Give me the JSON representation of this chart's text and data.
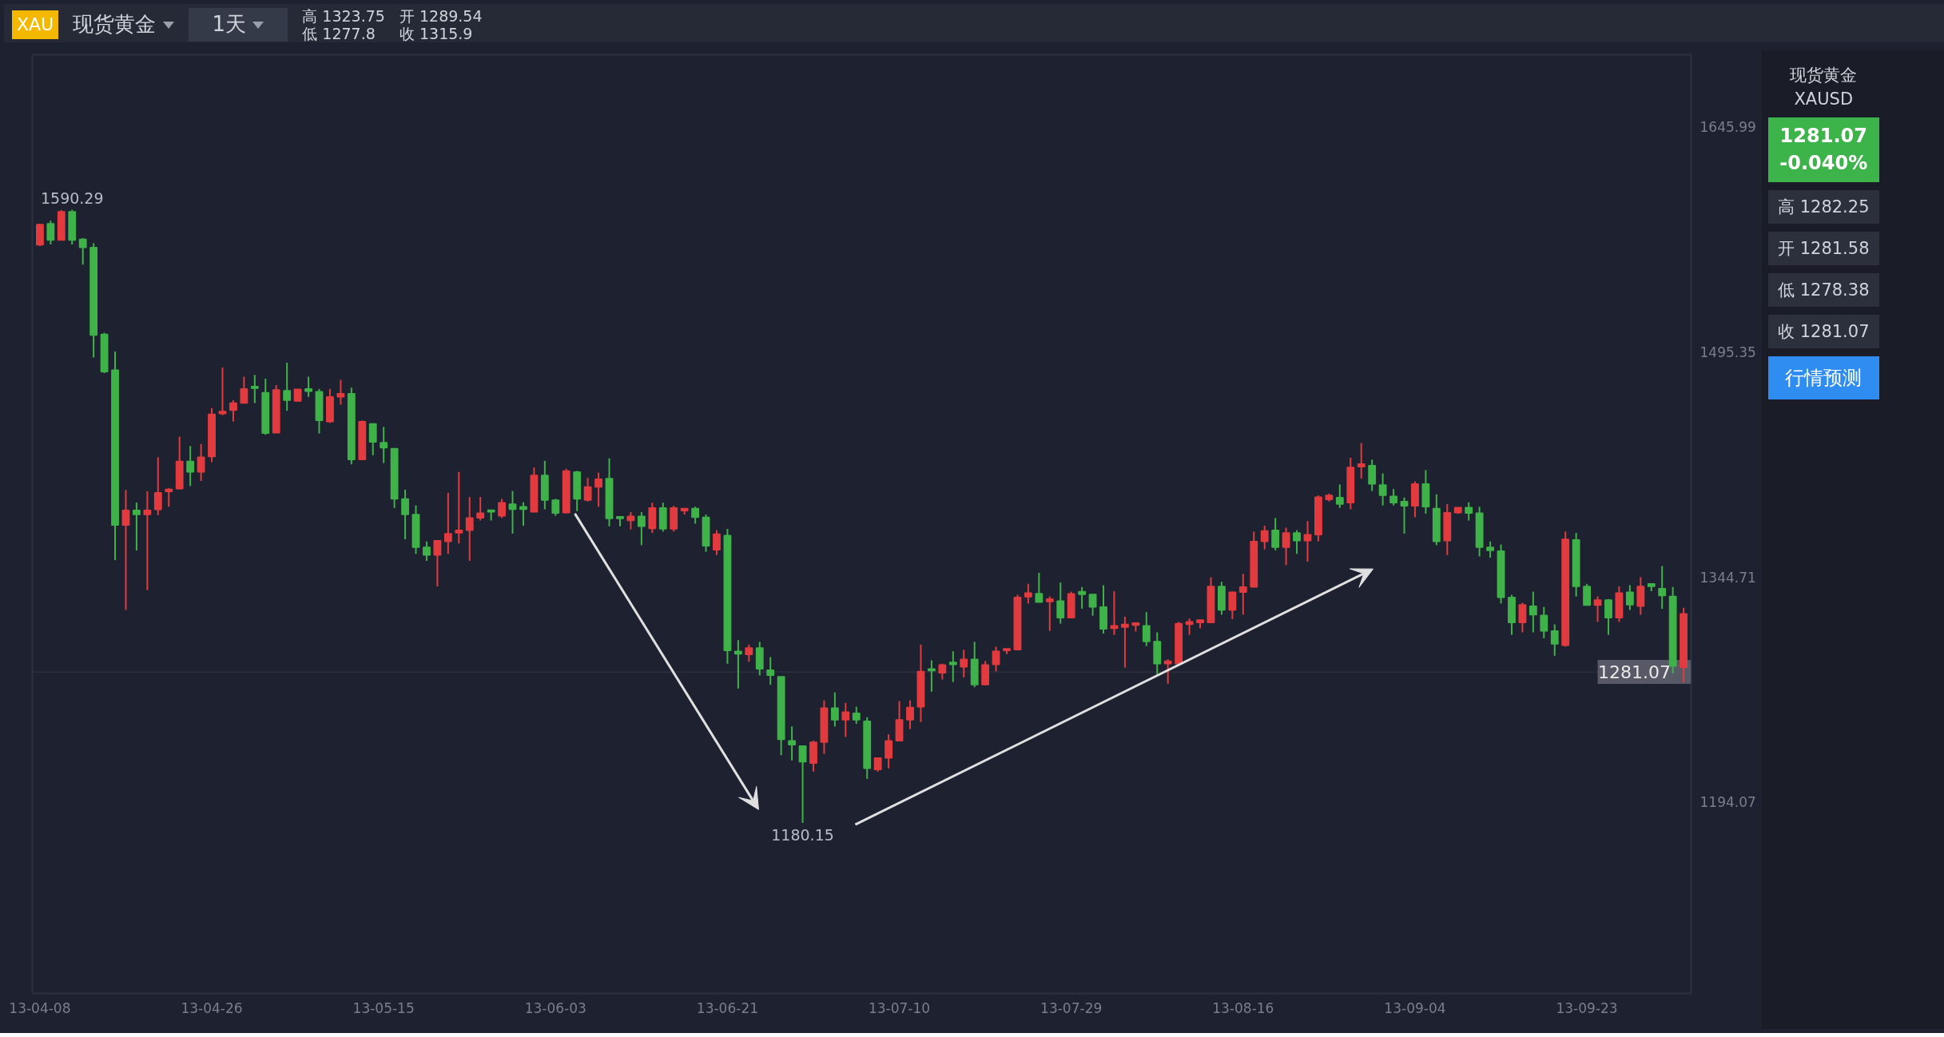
{
  "chart_data": {
    "type": "candlestick",
    "categories": [
      "13-04-08",
      null,
      null,
      null,
      null,
      null,
      null,
      null,
      null,
      null,
      null,
      null,
      null,
      null,
      null,
      null,
      "13-04-26",
      null,
      null,
      null,
      null,
      null,
      null,
      null,
      null,
      null,
      null,
      null,
      null,
      null,
      null,
      null,
      "13-05-15",
      null,
      null,
      null,
      null,
      null,
      null,
      null,
      null,
      null,
      null,
      null,
      null,
      null,
      null,
      null,
      "13-06-03",
      null,
      null,
      null,
      null,
      null,
      null,
      null,
      null,
      null,
      null,
      null,
      null,
      null,
      null,
      null,
      "13-06-21",
      null,
      null,
      null,
      null,
      null,
      null,
      null,
      null,
      null,
      null,
      null,
      null,
      null,
      null,
      null,
      "13-07-10",
      null,
      null,
      null,
      null,
      null,
      null,
      null,
      null,
      null,
      null,
      null,
      null,
      null,
      null,
      null,
      "13-07-29",
      null,
      null,
      null,
      null,
      null,
      null,
      null,
      null,
      null,
      null,
      null,
      null,
      null,
      null,
      null,
      "13-08-16",
      null,
      null,
      null,
      null,
      null,
      null,
      null,
      null,
      null,
      null,
      null,
      null,
      null,
      null,
      null,
      "13-09-04",
      null,
      null,
      null,
      null,
      null,
      null,
      null,
      null,
      null,
      null,
      null,
      null,
      null,
      null,
      null,
      "13-09-23",
      null,
      null,
      null,
      null,
      null,
      null,
      null,
      null,
      null
    ],
    "ohlc": [
      [
        1566.8,
        1581.0,
        1566.0,
        1580.4
      ],
      [
        1581.0,
        1583.0,
        1567.0,
        1570.0
      ],
      [
        1570.0,
        1590.0,
        1570.0,
        1589.0
      ],
      [
        1589.0,
        1590.29,
        1567.0,
        1570.0
      ],
      [
        1570.5,
        1571.3,
        1553.6,
        1565.1
      ],
      [
        1565.1,
        1567.9,
        1491.4,
        1506.4
      ],
      [
        1507.0,
        1508.0,
        1481.0,
        1482.0
      ],
      [
        1483.0,
        1495.5,
        1356.0,
        1379.3
      ],
      [
        1379.3,
        1402.9,
        1322.6,
        1389.2
      ],
      [
        1389.2,
        1394.4,
        1362.4,
        1386.4
      ],
      [
        1386.4,
        1401.9,
        1335.8,
        1389.2
      ],
      [
        1389.8,
        1424.8,
        1386.0,
        1401.0
      ],
      [
        1401.8,
        1404.2,
        1391.6,
        1403.3
      ],
      [
        1403.6,
        1438.5,
        1403.3,
        1422.0
      ],
      [
        1422.0,
        1432.3,
        1405.5,
        1414.9
      ],
      [
        1414.9,
        1433.6,
        1408.9,
        1424.8
      ],
      [
        1425.2,
        1457.6,
        1421.4,
        1453.5
      ],
      [
        1453.9,
        1484.8,
        1452.9,
        1455.4
      ],
      [
        1456.1,
        1462.9,
        1448.6,
        1461.0
      ],
      [
        1461.0,
        1478.6,
        1461.0,
        1470.4
      ],
      [
        1472.1,
        1479.8,
        1461.0,
        1470.8
      ],
      [
        1467.9,
        1477.3,
        1439.8,
        1440.8
      ],
      [
        1441.1,
        1473.0,
        1441.1,
        1469.8
      ],
      [
        1469.3,
        1488.0,
        1455.8,
        1462.9
      ],
      [
        1462.3,
        1470.2,
        1461.8,
        1470.2
      ],
      [
        1470.4,
        1478.6,
        1465.1,
        1468.9
      ],
      [
        1468.6,
        1470.4,
        1440.6,
        1449.4
      ],
      [
        1448.5,
        1470.4,
        1447.6,
        1465.1
      ],
      [
        1465.1,
        1476.5,
        1459.9,
        1467.2
      ],
      [
        1467.2,
        1471.3,
        1420.0,
        1423.1
      ],
      [
        1423.1,
        1449.4,
        1423.1,
        1448.5
      ],
      [
        1447.1,
        1447.1,
        1426.1,
        1434.9
      ],
      [
        1434.5,
        1445.0,
        1420.9,
        1431.0
      ],
      [
        1430.5,
        1430.5,
        1390.8,
        1396.9
      ],
      [
        1396.9,
        1403.0,
        1369.8,
        1386.4
      ],
      [
        1386.4,
        1392.5,
        1360.1,
        1364.5
      ],
      [
        1364.5,
        1368.4,
        1355.4,
        1359.3
      ],
      [
        1359.3,
        1368.9,
        1338.3,
        1368.9
      ],
      [
        1368.4,
        1400.9,
        1360.1,
        1373.6
      ],
      [
        1374.1,
        1414.9,
        1367.1,
        1375.9
      ],
      [
        1375.9,
        1398.1,
        1355.4,
        1384.1
      ],
      [
        1384.1,
        1398.1,
        1382.4,
        1387.3
      ],
      [
        1389.4,
        1389.4,
        1382.4,
        1388.1
      ],
      [
        1385.5,
        1396.9,
        1384.1,
        1394.3
      ],
      [
        1393.4,
        1402.1,
        1373.6,
        1389.9
      ],
      [
        1391.6,
        1394.6,
        1378.9,
        1389.9
      ],
      [
        1388.1,
        1417.9,
        1388.1,
        1412.6
      ],
      [
        1412.6,
        1422.3,
        1389.9,
        1396.0
      ],
      [
        1396.0,
        1396.9,
        1385.5,
        1387.3
      ],
      [
        1387.6,
        1417.0,
        1387.3,
        1415.6
      ],
      [
        1414.9,
        1415.6,
        1388.7,
        1396.9
      ],
      [
        1396.0,
        1410.9,
        1395.1,
        1404.8
      ],
      [
        1404.8,
        1414.4,
        1391.6,
        1410.0
      ],
      [
        1410.4,
        1424.0,
        1378.5,
        1383.8
      ],
      [
        1385.0,
        1385.0,
        1378.5,
        1383.8
      ],
      [
        1382.4,
        1388.1,
        1376.4,
        1385.2
      ],
      [
        1385.2,
        1388.1,
        1365.9,
        1378.5
      ],
      [
        1377.1,
        1394.3,
        1374.1,
        1390.8
      ],
      [
        1390.8,
        1394.3,
        1375.0,
        1376.8
      ],
      [
        1376.8,
        1392.2,
        1375.0,
        1390.8
      ],
      [
        1389.0,
        1390.4,
        1386.4,
        1390.4
      ],
      [
        1390.4,
        1391.6,
        1380.3,
        1384.6
      ],
      [
        1384.6,
        1386.4,
        1361.4,
        1365.4
      ],
      [
        1362.8,
        1375.9,
        1359.3,
        1373.3
      ],
      [
        1372.4,
        1376.8,
        1286.6,
        1295.4
      ],
      [
        1294.9,
        1302.4,
        1270.0,
        1293.1
      ],
      [
        1292.8,
        1299.4,
        1287.9,
        1297.1
      ],
      [
        1297.1,
        1301.2,
        1278.8,
        1283.1
      ],
      [
        1282.3,
        1291.0,
        1272.6,
        1278.8
      ],
      [
        1277.9,
        1277.9,
        1225.4,
        1235.9
      ],
      [
        1235.0,
        1244.6,
        1221.9,
        1232.4
      ],
      [
        1231.5,
        1231.5,
        1180.15,
        1221.0
      ],
      [
        1220.1,
        1235.0,
        1214.4,
        1234.1
      ],
      [
        1234.1,
        1262.1,
        1226.3,
        1256.9
      ],
      [
        1256.9,
        1267.4,
        1244.6,
        1249.0
      ],
      [
        1249.0,
        1260.4,
        1237.6,
        1254.3
      ],
      [
        1253.4,
        1257.8,
        1246.4,
        1249.0
      ],
      [
        1248.1,
        1250.8,
        1209.6,
        1216.6
      ],
      [
        1215.8,
        1223.6,
        1214.4,
        1223.6
      ],
      [
        1223.6,
        1239.4,
        1216.6,
        1235.0
      ],
      [
        1235.0,
        1261.6,
        1235.0,
        1249.0
      ],
      [
        1249.0,
        1262.1,
        1242.9,
        1257.4
      ],
      [
        1257.8,
        1299.4,
        1247.6,
        1281.4
      ],
      [
        1283.1,
        1288.8,
        1267.9,
        1281.9
      ],
      [
        1280.5,
        1286.6,
        1276.1,
        1285.8
      ],
      [
        1287.5,
        1294.9,
        1274.4,
        1286.1
      ],
      [
        1284.4,
        1295.9,
        1277.4,
        1289.6
      ],
      [
        1289.6,
        1301.2,
        1270.9,
        1272.6
      ],
      [
        1272.6,
        1288.4,
        1272.1,
        1285.8
      ],
      [
        1286.1,
        1298.0,
        1281.4,
        1294.9
      ],
      [
        1295.4,
        1296.6,
        1293.1,
        1296.6
      ],
      [
        1295.9,
        1332.7,
        1295.9,
        1330.9
      ],
      [
        1331.3,
        1340.0,
        1326.9,
        1333.9
      ],
      [
        1333.5,
        1347.4,
        1327.8,
        1327.8
      ],
      [
        1328.1,
        1331.6,
        1308.5,
        1329.9
      ],
      [
        1328.6,
        1340.9,
        1313.4,
        1317.3
      ],
      [
        1317.3,
        1334.8,
        1317.3,
        1333.4
      ],
      [
        1334.8,
        1337.9,
        1323.4,
        1333.0
      ],
      [
        1333.0,
        1333.0,
        1318.7,
        1324.6
      ],
      [
        1324.6,
        1339.1,
        1306.8,
        1309.9
      ],
      [
        1310.3,
        1335.1,
        1305.9,
        1312.0
      ],
      [
        1311.1,
        1318.1,
        1284.0,
        1312.9
      ],
      [
        1312.4,
        1314.1,
        1308.2,
        1313.8
      ],
      [
        1312.0,
        1321.1,
        1298.4,
        1301.5
      ],
      [
        1301.5,
        1307.6,
        1279.6,
        1286.6
      ],
      [
        1286.6,
        1289.6,
        1273.2,
        1288.4
      ],
      [
        1286.6,
        1314.6,
        1286.6,
        1313.4
      ],
      [
        1312.9,
        1316.9,
        1305.9,
        1314.6
      ],
      [
        1314.1,
        1315.9,
        1310.3,
        1315.9
      ],
      [
        1314.1,
        1344.4,
        1314.1,
        1338.3
      ],
      [
        1338.3,
        1341.4,
        1319.4,
        1322.5
      ],
      [
        1322.5,
        1334.8,
        1316.4,
        1334.4
      ],
      [
        1334.4,
        1346.7,
        1319.4,
        1337.9
      ],
      [
        1337.9,
        1375.0,
        1337.9,
        1368.4
      ],
      [
        1368.4,
        1378.9,
        1363.1,
        1375.4
      ],
      [
        1375.9,
        1384.1,
        1362.4,
        1364.5
      ],
      [
        1364.5,
        1377.6,
        1352.6,
        1374.1
      ],
      [
        1374.1,
        1375.9,
        1360.1,
        1368.9
      ],
      [
        1368.9,
        1382.0,
        1354.9,
        1372.9
      ],
      [
        1372.9,
        1399.2,
        1368.4,
        1398.1
      ],
      [
        1396.4,
        1400.4,
        1395.1,
        1399.2
      ],
      [
        1397.8,
        1406.5,
        1390.8,
        1393.4
      ],
      [
        1394.3,
        1424.4,
        1389.9,
        1417.9
      ],
      [
        1418.4,
        1434.2,
        1410.4,
        1420.2
      ],
      [
        1419.1,
        1423.1,
        1402.1,
        1406.9
      ],
      [
        1406.2,
        1413.9,
        1392.5,
        1399.2
      ],
      [
        1398.6,
        1403.4,
        1392.5,
        1394.3
      ],
      [
        1395.1,
        1397.8,
        1373.6,
        1392.2
      ],
      [
        1392.2,
        1408.6,
        1384.6,
        1406.9
      ],
      [
        1406.9,
        1416.1,
        1386.9,
        1391.6
      ],
      [
        1390.4,
        1399.9,
        1365.9,
        1368.4
      ],
      [
        1368.9,
        1393.4,
        1359.3,
        1387.6
      ],
      [
        1387.6,
        1391.1,
        1386.9,
        1391.1
      ],
      [
        1391.1,
        1394.6,
        1382.4,
        1387.3
      ],
      [
        1387.3,
        1391.6,
        1358.4,
        1364.5
      ],
      [
        1364.5,
        1368.4,
        1357.5,
        1362.4
      ],
      [
        1361.9,
        1366.3,
        1326.9,
        1330.9
      ],
      [
        1330.9,
        1332.7,
        1305.9,
        1314.1
      ],
      [
        1314.1,
        1327.4,
        1307.6,
        1326.0
      ],
      [
        1325.1,
        1334.8,
        1307.6,
        1319.4
      ],
      [
        1319.0,
        1324.6,
        1303.6,
        1308.5
      ],
      [
        1308.5,
        1312.9,
        1291.9,
        1299.8
      ],
      [
        1298.9,
        1375.0,
        1298.0,
        1369.8
      ],
      [
        1369.4,
        1374.1,
        1331.6,
        1338.3
      ],
      [
        1338.3,
        1340.0,
        1325.7,
        1325.7
      ],
      [
        1325.7,
        1331.6,
        1314.6,
        1329.2
      ],
      [
        1329.2,
        1329.9,
        1305.9,
        1317.3
      ],
      [
        1317.3,
        1338.3,
        1314.6,
        1333.9
      ],
      [
        1334.4,
        1339.1,
        1322.5,
        1326.0
      ],
      [
        1325.1,
        1344.4,
        1319.4,
        1338.3
      ],
      [
        1340.0,
        1340.0,
        1335.1,
        1338.3
      ],
      [
        1336.9,
        1351.9,
        1323.4,
        1332.2
      ],
      [
        1331.6,
        1337.9,
        1280.0,
        1285.0
      ],
      [
        1284.0,
        1324.0,
        1274.0,
        1320.0
      ]
    ],
    "colors": [
      "#e23b3f",
      "#3fb24a",
      "#e23b3f",
      "#3fb24a",
      "#3fb24a",
      "#3fb24a",
      "#3fb24a",
      "#3fb24a",
      "#e23b3f",
      "#3fb24a",
      "#e23b3f",
      "#e23b3f",
      "#e23b3f",
      "#e23b3f",
      "#3fb24a",
      "#e23b3f",
      "#e23b3f",
      "#e23b3f",
      "#e23b3f",
      "#e23b3f",
      "#3fb24a",
      "#3fb24a",
      "#e23b3f",
      "#3fb24a",
      "#e23b3f",
      "#3fb24a",
      "#3fb24a",
      "#e23b3f",
      "#e23b3f",
      "#3fb24a",
      "#e23b3f",
      "#3fb24a",
      "#3fb24a",
      "#3fb24a",
      "#3fb24a",
      "#3fb24a",
      "#3fb24a",
      "#e23b3f",
      "#e23b3f",
      "#e23b3f",
      "#e23b3f",
      "#e23b3f",
      "#3fb24a",
      "#e23b3f",
      "#3fb24a",
      "#3fb24a",
      "#e23b3f",
      "#3fb24a",
      "#3fb24a",
      "#e23b3f",
      "#3fb24a",
      "#e23b3f",
      "#e23b3f",
      "#3fb24a",
      "#3fb24a",
      "#e23b3f",
      "#3fb24a",
      "#e23b3f",
      "#3fb24a",
      "#e23b3f",
      "#e23b3f",
      "#3fb24a",
      "#3fb24a",
      "#e23b3f",
      "#3fb24a",
      "#3fb24a",
      "#e23b3f",
      "#3fb24a",
      "#3fb24a",
      "#3fb24a",
      "#3fb24a",
      "#3fb24a",
      "#e23b3f",
      "#e23b3f",
      "#3fb24a",
      "#e23b3f",
      "#3fb24a",
      "#3fb24a",
      "#e23b3f",
      "#e23b3f",
      "#e23b3f",
      "#e23b3f",
      "#e23b3f",
      "#3fb24a",
      "#e23b3f",
      "#3fb24a",
      "#e23b3f",
      "#3fb24a",
      "#e23b3f",
      "#e23b3f",
      "#e23b3f",
      "#e23b3f",
      "#e23b3f",
      "#3fb24a",
      "#e23b3f",
      "#3fb24a",
      "#e23b3f",
      "#3fb24a",
      "#3fb24a",
      "#3fb24a",
      "#e23b3f",
      "#e23b3f",
      "#e23b3f",
      "#3fb24a",
      "#3fb24a",
      "#e23b3f",
      "#e23b3f",
      "#e23b3f",
      "#e23b3f",
      "#e23b3f",
      "#3fb24a",
      "#e23b3f",
      "#e23b3f",
      "#e23b3f",
      "#e23b3f",
      "#3fb24a",
      "#e23b3f",
      "#3fb24a",
      "#e23b3f",
      "#e23b3f",
      "#e23b3f",
      "#3fb24a",
      "#e23b3f",
      "#e23b3f",
      "#3fb24a",
      "#3fb24a",
      "#3fb24a",
      "#3fb24a",
      "#e23b3f",
      "#3fb24a",
      "#3fb24a",
      "#e23b3f",
      "#e23b3f",
      "#3fb24a",
      "#3fb24a",
      "#3fb24a",
      "#3fb24a",
      "#3fb24a",
      "#e23b3f",
      "#3fb24a",
      "#3fb24a",
      "#3fb24a",
      "#e23b3f",
      "#3fb24a",
      "#3fb24a",
      "#e23b3f",
      "#3fb24a",
      "#e23b3f",
      "#3fb24a",
      "#e23b3f",
      "#3fb24a",
      "#3fb24a",
      "#3fb24a",
      "#e23b3f"
    ],
    "ylim": [
      1066,
      1694
    ],
    "yticks": [
      1645.99,
      1495.35,
      1344.71,
      1194.07
    ],
    "ref_lines": [
      {
        "axis": "y",
        "value": 1281.07,
        "label": "1281.07",
        "color": "#5d616d"
      }
    ],
    "annotations": [
      "XAU",
      "现货黄金",
      "1天",
      "高 1323.75",
      "开 1289.54",
      "低 1277.8",
      "收 1315.9",
      "现货黄金",
      "XAUSD",
      "1281.07",
      "-0.040%",
      "高 1282.25",
      "开 1281.58",
      "低 1278.38",
      "收 1281.07",
      "行情预测",
      {
        "text": "1590.29",
        "y": 1590.29
      },
      {
        "text": "1180.15",
        "y": 1180.15
      }
    ]
  }
}
